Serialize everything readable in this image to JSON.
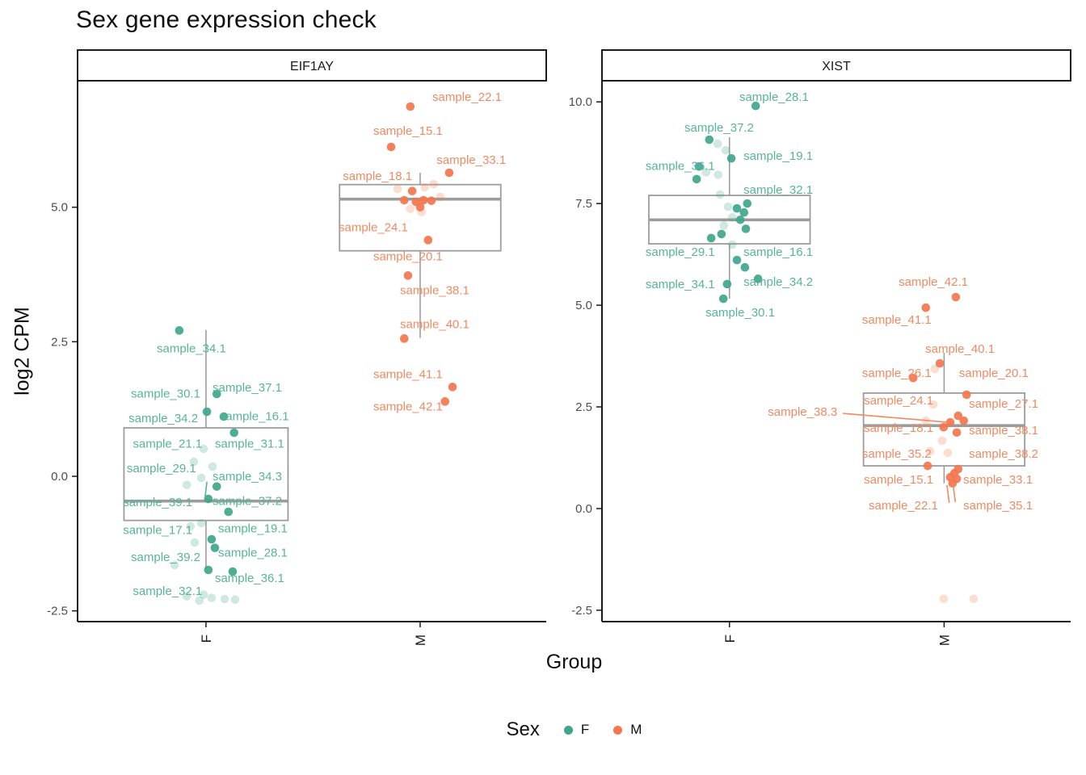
{
  "chart_data": {
    "type": "boxplot",
    "title": "Sex gene expression check",
    "xlabel": "Group",
    "ylabel": "log2 CPM",
    "legend": {
      "title": "Sex",
      "entries": [
        {
          "label": "F",
          "color": "#3FA68C"
        },
        {
          "label": "M",
          "color": "#F3764D"
        }
      ]
    },
    "colors": {
      "point_F": "#3FA68C",
      "point_M": "#F3764D",
      "label_F": "#56B49A",
      "label_M": "#F08A60",
      "box": "#9C9C9C",
      "axis": "#1A1A1A",
      "tick_text": "#4D4D4D"
    },
    "facets": [
      {
        "name": "EIF1AY",
        "ylim": [
          -2.7,
          7.35
        ],
        "yticks": [
          5.0,
          2.5,
          0.0,
          -2.5
        ],
        "groups": [
          {
            "label": "F",
            "sex": "F",
            "center": 0.274,
            "half_width": 0.175,
            "box": {
              "lower_whisker": -1.72,
              "q1": -0.82,
              "median": -0.46,
              "q3": 0.9,
              "upper_whisker": 2.72
            },
            "solid_points": [
              [
                0.217,
                2.71
              ],
              [
                0.297,
                1.53
              ],
              [
                0.276,
                1.2
              ],
              [
                0.312,
                1.11
              ],
              [
                0.334,
                0.81
              ],
              [
                0.297,
                -0.19
              ],
              [
                0.279,
                -0.42
              ],
              [
                0.322,
                -0.66
              ],
              [
                0.286,
                -1.17
              ],
              [
                0.293,
                -1.33
              ],
              [
                0.279,
                -1.74
              ],
              [
                0.331,
                -1.77
              ]
            ],
            "faded_points": [
              [
                0.269,
                0.51
              ],
              [
                0.248,
                0.27
              ],
              [
                0.288,
                0.18
              ],
              [
                0.264,
                -0.03
              ],
              [
                0.233,
                -0.16
              ],
              [
                0.264,
                -0.87
              ],
              [
                0.241,
                -0.93
              ],
              [
                0.25,
                -1.23
              ],
              [
                0.207,
                -1.65
              ],
              [
                0.269,
                -2.2
              ],
              [
                0.233,
                -2.23
              ],
              [
                0.26,
                -2.31
              ],
              [
                0.286,
                -2.26
              ],
              [
                0.314,
                -2.28
              ],
              [
                0.336,
                -2.29
              ]
            ],
            "leaders": [
              [
                0.276,
                -0.1,
                0.272,
                -0.4
              ]
            ],
            "labels": [
              {
                "text": "sample_34.1",
                "x": 0.243,
                "y": 2.38,
                "anchor": "middle"
              },
              {
                "text": "sample_30.1",
                "x": 0.262,
                "y": 1.54,
                "anchor": "end"
              },
              {
                "text": "sample_37.1",
                "x": 0.288,
                "y": 1.65,
                "anchor": "start"
              },
              {
                "text": "sample_34.2",
                "x": 0.257,
                "y": 1.08,
                "anchor": "end"
              },
              {
                "text": "sample_16.1",
                "x": 0.303,
                "y": 1.12,
                "anchor": "start"
              },
              {
                "text": "sample_21.1",
                "x": 0.266,
                "y": 0.61,
                "anchor": "end"
              },
              {
                "text": "sample_31.1",
                "x": 0.293,
                "y": 0.61,
                "anchor": "start"
              },
              {
                "text": "sample_29.1",
                "x": 0.253,
                "y": 0.15,
                "anchor": "end"
              },
              {
                "text": "sample_34.3",
                "x": 0.288,
                "y": 0.0,
                "anchor": "start"
              },
              {
                "text": "sample_39.1",
                "x": 0.245,
                "y": -0.48,
                "anchor": "end"
              },
              {
                "text": "sample_37.2",
                "x": 0.288,
                "y": -0.46,
                "anchor": "start"
              },
              {
                "text": "sample_17.1",
                "x": 0.245,
                "y": -1.0,
                "anchor": "end"
              },
              {
                "text": "sample_19.1",
                "x": 0.3,
                "y": -0.97,
                "anchor": "start"
              },
              {
                "text": "sample_39.2",
                "x": 0.262,
                "y": -1.5,
                "anchor": "end"
              },
              {
                "text": "sample_28.1",
                "x": 0.3,
                "y": -1.42,
                "anchor": "start"
              },
              {
                "text": "sample_36.1",
                "x": 0.293,
                "y": -1.89,
                "anchor": "start"
              },
              {
                "text": "sample_32.1",
                "x": 0.266,
                "y": -2.13,
                "anchor": "end"
              }
            ]
          },
          {
            "label": "M",
            "sex": "M",
            "center": 0.731,
            "half_width": 0.172,
            "box": {
              "lower_whisker": 2.57,
              "q1": 4.19,
              "median": 5.15,
              "q3": 5.42,
              "upper_whisker": 5.64
            },
            "solid_points": [
              [
                0.71,
                6.87
              ],
              [
                0.669,
                6.12
              ],
              [
                0.793,
                5.64
              ],
              [
                0.714,
                5.3
              ],
              [
                0.697,
                5.13
              ],
              [
                0.722,
                5.1
              ],
              [
                0.738,
                5.13
              ],
              [
                0.755,
                5.12
              ],
              [
                0.731,
                5.0
              ],
              [
                0.748,
                4.39
              ],
              [
                0.705,
                3.73
              ],
              [
                0.697,
                2.56
              ],
              [
                0.8,
                1.66
              ],
              [
                0.784,
                1.39
              ]
            ],
            "faded_points": [
              [
                0.683,
                5.34
              ],
              [
                0.741,
                5.37
              ],
              [
                0.76,
                5.43
              ],
              [
                0.774,
                5.19
              ],
              [
                0.71,
                4.97
              ],
              [
                0.734,
                4.91
              ]
            ],
            "leaders": [],
            "labels": [
              {
                "text": "sample_22.1",
                "x": 0.757,
                "y": 7.05,
                "anchor": "start"
              },
              {
                "text": "sample_15.1",
                "x": 0.705,
                "y": 6.42,
                "anchor": "middle"
              },
              {
                "text": "sample_33.1",
                "x": 0.766,
                "y": 5.88,
                "anchor": "start"
              },
              {
                "text": "sample_18.1",
                "x": 0.714,
                "y": 5.58,
                "anchor": "end"
              },
              {
                "text": "sample_24.1",
                "x": 0.705,
                "y": 4.63,
                "anchor": "end"
              },
              {
                "text": "sample_20.1",
                "x": 0.705,
                "y": 4.09,
                "anchor": "middle"
              },
              {
                "text": "sample_38.1",
                "x": 0.762,
                "y": 3.46,
                "anchor": "middle"
              },
              {
                "text": "sample_40.1",
                "x": 0.762,
                "y": 2.83,
                "anchor": "middle"
              },
              {
                "text": "sample_41.1",
                "x": 0.705,
                "y": 1.9,
                "anchor": "middle"
              },
              {
                "text": "sample_42.1",
                "x": 0.705,
                "y": 1.3,
                "anchor": "middle"
              }
            ]
          }
        ]
      },
      {
        "name": "XIST",
        "ylim": [
          -2.78,
          10.52
        ],
        "yticks": [
          10.0,
          7.5,
          5.0,
          2.5,
          0.0,
          -2.5
        ],
        "groups": [
          {
            "label": "F",
            "sex": "F",
            "center": 0.272,
            "half_width": 0.172,
            "box": {
              "lower_whisker": 5.16,
              "q1": 6.51,
              "median": 7.1,
              "q3": 7.7,
              "upper_whisker": 9.13
            },
            "solid_points": [
              [
                0.328,
                9.9
              ],
              [
                0.229,
                9.07
              ],
              [
                0.276,
                8.61
              ],
              [
                0.207,
                8.41
              ],
              [
                0.202,
                8.1
              ],
              [
                0.31,
                7.5
              ],
              [
                0.288,
                7.38
              ],
              [
                0.303,
                7.28
              ],
              [
                0.295,
                7.1
              ],
              [
                0.307,
                6.88
              ],
              [
                0.255,
                6.75
              ],
              [
                0.233,
                6.65
              ],
              [
                0.288,
                6.11
              ],
              [
                0.305,
                5.93
              ],
              [
                0.333,
                5.65
              ],
              [
                0.267,
                5.52
              ],
              [
                0.259,
                5.16
              ]
            ],
            "faded_points": [
              [
                0.247,
                8.97
              ],
              [
                0.264,
                8.81
              ],
              [
                0.222,
                8.27
              ],
              [
                0.248,
                8.21
              ],
              [
                0.252,
                7.72
              ],
              [
                0.269,
                7.42
              ],
              [
                0.278,
                7.16
              ],
              [
                0.26,
                6.96
              ],
              [
                0.278,
                6.49
              ]
            ],
            "leaders": [],
            "labels": [
              {
                "text": "sample_28.1",
                "x": 0.293,
                "y": 10.12,
                "anchor": "start"
              },
              {
                "text": "sample_37.2",
                "x": 0.25,
                "y": 9.37,
                "anchor": "middle"
              },
              {
                "text": "sample_36.1",
                "x": 0.241,
                "y": 8.43,
                "anchor": "end"
              },
              {
                "text": "sample_19.1",
                "x": 0.302,
                "y": 8.67,
                "anchor": "start"
              },
              {
                "text": "sample_32.1",
                "x": 0.302,
                "y": 7.84,
                "anchor": "start"
              },
              {
                "text": "sample_29.1",
                "x": 0.241,
                "y": 6.31,
                "anchor": "end"
              },
              {
                "text": "sample_16.1",
                "x": 0.302,
                "y": 6.31,
                "anchor": "start"
              },
              {
                "text": "sample_34.1",
                "x": 0.241,
                "y": 5.52,
                "anchor": "end"
              },
              {
                "text": "sample_34.2",
                "x": 0.302,
                "y": 5.58,
                "anchor": "start"
              },
              {
                "text": "sample_30.1",
                "x": 0.295,
                "y": 4.82,
                "anchor": "middle"
              }
            ]
          },
          {
            "label": "M",
            "sex": "M",
            "center": 0.73,
            "half_width": 0.172,
            "box": {
              "lower_whisker": 0.62,
              "q1": 1.05,
              "median": 2.04,
              "q3": 2.84,
              "upper_whisker": 3.83
            },
            "solid_points": [
              [
                0.755,
                5.2
              ],
              [
                0.691,
                4.94
              ],
              [
                0.721,
                3.57
              ],
              [
                0.664,
                3.21
              ],
              [
                0.778,
                2.8
              ],
              [
                0.76,
                2.28
              ],
              [
                0.772,
                2.16
              ],
              [
                0.743,
                2.12
              ],
              [
                0.729,
                2.0
              ],
              [
                0.757,
                1.87
              ],
              [
                0.695,
                1.05
              ],
              [
                0.76,
                0.97
              ],
              [
                0.752,
                0.87
              ],
              [
                0.743,
                0.77
              ],
              [
                0.757,
                0.73
              ],
              [
                0.748,
                0.62
              ]
            ],
            "faded_points": [
              [
                0.71,
                3.43
              ],
              [
                0.707,
                2.56
              ],
              [
                0.691,
                2.16
              ],
              [
                0.726,
                1.67
              ],
              [
                0.7,
                1.41
              ],
              [
                0.738,
                1.37
              ],
              [
                0.729,
                -2.22
              ],
              [
                0.793,
                -2.22
              ]
            ],
            "leaders": [
              [
                0.514,
                2.34,
                0.74,
                2.12
              ],
              [
                0.736,
                0.58,
                0.741,
                0.14
              ],
              [
                0.749,
                0.6,
                0.754,
                0.16
              ]
            ],
            "labels": [
              {
                "text": "sample_42.1",
                "x": 0.707,
                "y": 5.58,
                "anchor": "middle"
              },
              {
                "text": "sample_41.1",
                "x": 0.629,
                "y": 4.64,
                "anchor": "middle"
              },
              {
                "text": "sample_40.1",
                "x": 0.764,
                "y": 3.93,
                "anchor": "middle"
              },
              {
                "text": "sample_26.1",
                "x": 0.629,
                "y": 3.33,
                "anchor": "middle"
              },
              {
                "text": "sample_20.1",
                "x": 0.836,
                "y": 3.33,
                "anchor": "middle"
              },
              {
                "text": "sample_24.1",
                "x": 0.633,
                "y": 2.66,
                "anchor": "middle"
              },
              {
                "text": "sample_27.1",
                "x": 0.857,
                "y": 2.58,
                "anchor": "middle"
              },
              {
                "text": "sample_38.3",
                "x": 0.428,
                "y": 2.38,
                "anchor": "middle"
              },
              {
                "text": "sample_18.1",
                "x": 0.633,
                "y": 1.98,
                "anchor": "middle"
              },
              {
                "text": "sample_38.1",
                "x": 0.857,
                "y": 1.92,
                "anchor": "middle"
              },
              {
                "text": "sample_35.2",
                "x": 0.629,
                "y": 1.35,
                "anchor": "middle"
              },
              {
                "text": "sample_38.2",
                "x": 0.857,
                "y": 1.35,
                "anchor": "middle"
              },
              {
                "text": "sample_15.1",
                "x": 0.633,
                "y": 0.71,
                "anchor": "middle"
              },
              {
                "text": "sample_33.1",
                "x": 0.845,
                "y": 0.71,
                "anchor": "middle"
              },
              {
                "text": "sample_22.1",
                "x": 0.643,
                "y": 0.08,
                "anchor": "middle"
              },
              {
                "text": "sample_35.1",
                "x": 0.845,
                "y": 0.08,
                "anchor": "middle"
              }
            ]
          }
        ]
      }
    ]
  }
}
